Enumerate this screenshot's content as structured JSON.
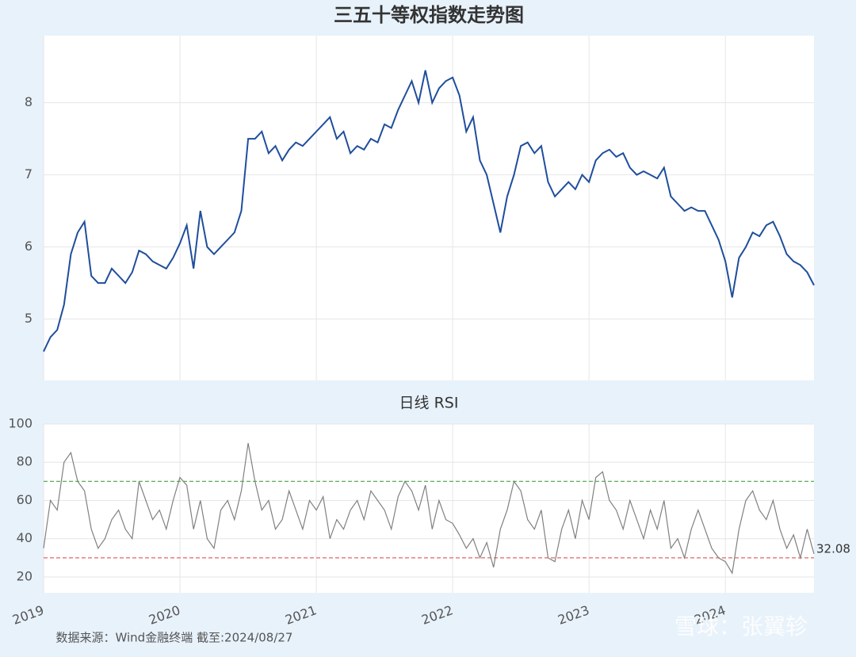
{
  "chart_data": [
    {
      "type": "line",
      "title": "三五十等权指数走势图",
      "x": [
        2019.0,
        2019.05,
        2019.1,
        2019.15,
        2019.2,
        2019.25,
        2019.3,
        2019.35,
        2019.4,
        2019.45,
        2019.5,
        2019.55,
        2019.6,
        2019.65,
        2019.7,
        2019.75,
        2019.8,
        2019.85,
        2019.9,
        2019.95,
        2020.0,
        2020.05,
        2020.1,
        2020.15,
        2020.2,
        2020.25,
        2020.3,
        2020.35,
        2020.4,
        2020.45,
        2020.5,
        2020.55,
        2020.6,
        2020.65,
        2020.7,
        2020.75,
        2020.8,
        2020.85,
        2020.9,
        2020.95,
        2021.0,
        2021.05,
        2021.1,
        2021.15,
        2021.2,
        2021.25,
        2021.3,
        2021.35,
        2021.4,
        2021.45,
        2021.5,
        2021.55,
        2021.6,
        2021.65,
        2021.7,
        2021.75,
        2021.8,
        2021.85,
        2021.9,
        2021.95,
        2022.0,
        2022.05,
        2022.1,
        2022.15,
        2022.2,
        2022.25,
        2022.3,
        2022.35,
        2022.4,
        2022.45,
        2022.5,
        2022.55,
        2022.6,
        2022.65,
        2022.7,
        2022.75,
        2022.8,
        2022.85,
        2022.9,
        2022.95,
        2023.0,
        2023.05,
        2023.1,
        2023.15,
        2023.2,
        2023.25,
        2023.3,
        2023.35,
        2023.4,
        2023.45,
        2023.5,
        2023.55,
        2023.6,
        2023.65,
        2023.7,
        2023.75,
        2023.8,
        2023.85,
        2023.9,
        2023.95,
        2024.0,
        2024.05,
        2024.1,
        2024.15,
        2024.2,
        2024.25,
        2024.3,
        2024.35,
        2024.4,
        2024.45,
        2024.5,
        2024.55,
        2024.6,
        2024.65
      ],
      "values": [
        4.55,
        4.75,
        4.85,
        5.2,
        5.9,
        6.2,
        6.35,
        5.6,
        5.5,
        5.5,
        5.7,
        5.6,
        5.5,
        5.65,
        5.95,
        5.9,
        5.8,
        5.75,
        5.7,
        5.85,
        6.05,
        6.3,
        5.7,
        6.5,
        6.0,
        5.9,
        6.0,
        6.1,
        6.2,
        6.5,
        7.5,
        7.5,
        7.6,
        7.3,
        7.4,
        7.2,
        7.35,
        7.45,
        7.4,
        7.5,
        7.6,
        7.7,
        7.8,
        7.5,
        7.6,
        7.3,
        7.4,
        7.35,
        7.5,
        7.45,
        7.7,
        7.65,
        7.9,
        8.1,
        8.3,
        8.0,
        8.45,
        8.0,
        8.2,
        8.3,
        8.35,
        8.1,
        7.6,
        7.8,
        7.2,
        7.0,
        6.6,
        6.2,
        6.7,
        7.0,
        7.4,
        7.45,
        7.3,
        7.4,
        6.9,
        6.7,
        6.8,
        6.9,
        6.8,
        7.0,
        6.9,
        7.2,
        7.3,
        7.35,
        7.25,
        7.3,
        7.1,
        7.0,
        7.05,
        7.0,
        6.95,
        7.1,
        6.7,
        6.6,
        6.5,
        6.55,
        6.5,
        6.5,
        6.3,
        6.1,
        5.8,
        5.3,
        5.85,
        6.0,
        6.2,
        6.15,
        6.3,
        6.35,
        6.15,
        5.9,
        5.8,
        5.75,
        5.65,
        5.47
      ],
      "color": "#1f4e9c",
      "xlim": [
        2019,
        2024.65
      ],
      "xticks": [
        2019,
        2020,
        2021,
        2022,
        2023,
        2024
      ],
      "ylim": [
        4.15,
        8.93
      ],
      "yticks": [
        5,
        6,
        7,
        8
      ],
      "grid": true
    },
    {
      "type": "line",
      "title": "日线 RSI",
      "x": [
        2019.0,
        2019.05,
        2019.1,
        2019.15,
        2019.2,
        2019.25,
        2019.3,
        2019.35,
        2019.4,
        2019.45,
        2019.5,
        2019.55,
        2019.6,
        2019.65,
        2019.7,
        2019.75,
        2019.8,
        2019.85,
        2019.9,
        2019.95,
        2020.0,
        2020.05,
        2020.1,
        2020.15,
        2020.2,
        2020.25,
        2020.3,
        2020.35,
        2020.4,
        2020.45,
        2020.5,
        2020.55,
        2020.6,
        2020.65,
        2020.7,
        2020.75,
        2020.8,
        2020.85,
        2020.9,
        2020.95,
        2021.0,
        2021.05,
        2021.1,
        2021.15,
        2021.2,
        2021.25,
        2021.3,
        2021.35,
        2021.4,
        2021.45,
        2021.5,
        2021.55,
        2021.6,
        2021.65,
        2021.7,
        2021.75,
        2021.8,
        2021.85,
        2021.9,
        2021.95,
        2022.0,
        2022.05,
        2022.1,
        2022.15,
        2022.2,
        2022.25,
        2022.3,
        2022.35,
        2022.4,
        2022.45,
        2022.5,
        2022.55,
        2022.6,
        2022.65,
        2022.7,
        2022.75,
        2022.8,
        2022.85,
        2022.9,
        2022.95,
        2023.0,
        2023.05,
        2023.1,
        2023.15,
        2023.2,
        2023.25,
        2023.3,
        2023.35,
        2023.4,
        2023.45,
        2023.5,
        2023.55,
        2023.6,
        2023.65,
        2023.7,
        2023.75,
        2023.8,
        2023.85,
        2023.9,
        2023.95,
        2024.0,
        2024.05,
        2024.1,
        2024.15,
        2024.2,
        2024.25,
        2024.3,
        2024.35,
        2024.4,
        2024.45,
        2024.5,
        2024.55,
        2024.6,
        2024.65
      ],
      "values": [
        35,
        60,
        55,
        80,
        85,
        70,
        65,
        45,
        35,
        40,
        50,
        55,
        45,
        40,
        70,
        60,
        50,
        55,
        45,
        60,
        72,
        68,
        45,
        60,
        40,
        35,
        55,
        60,
        50,
        65,
        90,
        70,
        55,
        60,
        45,
        50,
        65,
        55,
        45,
        60,
        55,
        62,
        40,
        50,
        45,
        55,
        60,
        50,
        65,
        60,
        55,
        45,
        62,
        70,
        65,
        55,
        68,
        45,
        60,
        50,
        48,
        42,
        35,
        40,
        30,
        38,
        25,
        45,
        55,
        70,
        65,
        50,
        45,
        55,
        30,
        28,
        45,
        55,
        40,
        60,
        50,
        72,
        75,
        60,
        55,
        45,
        60,
        50,
        40,
        55,
        45,
        60,
        35,
        40,
        30,
        45,
        55,
        45,
        35,
        30,
        28,
        22,
        45,
        60,
        65,
        55,
        50,
        60,
        45,
        35,
        42,
        30,
        45,
        32.08
      ],
      "color": "#808080",
      "hlines": [
        {
          "value": 70,
          "color": "#5cae5c"
        },
        {
          "value": 30,
          "color": "#e06666"
        }
      ],
      "xlim": [
        2019,
        2024.65
      ],
      "xticks": [
        2019,
        2020,
        2021,
        2022,
        2023,
        2024
      ],
      "ylim": [
        11.7,
        100
      ],
      "yticks": [
        20,
        40,
        60,
        80,
        100
      ],
      "grid": true
    }
  ],
  "source": "数据来源：Wind金融终端 截至:2024/08/27",
  "watermark": "雪球：张翼轸"
}
